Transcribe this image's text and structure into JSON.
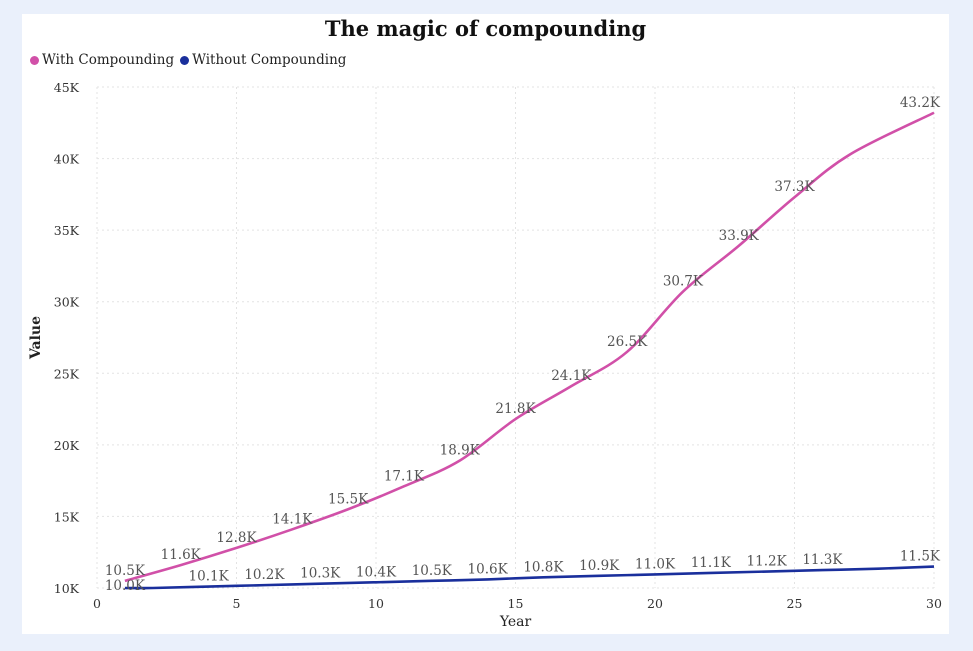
{
  "chart_data": {
    "type": "line",
    "title": "The magic of compounding",
    "xlabel": "Year",
    "ylabel": "Value",
    "xlim": [
      0,
      30
    ],
    "ylim": [
      10000,
      45000
    ],
    "x_ticks": [
      "0",
      "5",
      "10",
      "15",
      "20",
      "25",
      "30"
    ],
    "y_ticks": [
      "10K",
      "15K",
      "20K",
      "25K",
      "30K",
      "35K",
      "40K",
      "45K"
    ],
    "grid": true,
    "legend_position": "top-left",
    "series": [
      {
        "name": "With Compounding",
        "color": "#d150a8",
        "x": [
          1,
          3,
          5,
          7,
          9,
          11,
          13,
          15,
          17,
          19,
          21,
          23,
          25,
          27,
          30
        ],
        "y": [
          10500,
          11600,
          12800,
          14100,
          15500,
          17100,
          18900,
          21800,
          24100,
          26500,
          30700,
          33900,
          37300,
          40300,
          43200
        ],
        "labels": [
          "10.5K",
          "11.6K",
          "12.8K",
          "14.1K",
          "15.5K",
          "17.1K",
          "18.9K",
          "21.8K",
          "24.1K",
          "26.5K",
          "30.7K",
          "33.9K",
          "37.3K",
          "",
          "43.2K"
        ]
      },
      {
        "name": "Without Compounding",
        "color": "#1a2f9c",
        "x": [
          1,
          2,
          4,
          6,
          8,
          10,
          12,
          14,
          16,
          18,
          20,
          22,
          24,
          26,
          28,
          30
        ],
        "y": [
          10000,
          10000,
          10100,
          10200,
          10300,
          10400,
          10500,
          10600,
          10750,
          10850,
          10950,
          11050,
          11150,
          11250,
          11350,
          11500
        ],
        "labels": [
          "10.0K",
          "",
          "10.1K",
          "10.2K",
          "10.3K",
          "10.4K",
          "10.5K",
          "10.6K",
          "10.8K",
          "10.9K",
          "11.0K",
          "11.1K",
          "11.2K",
          "11.3K",
          "",
          "11.5K"
        ]
      }
    ]
  }
}
